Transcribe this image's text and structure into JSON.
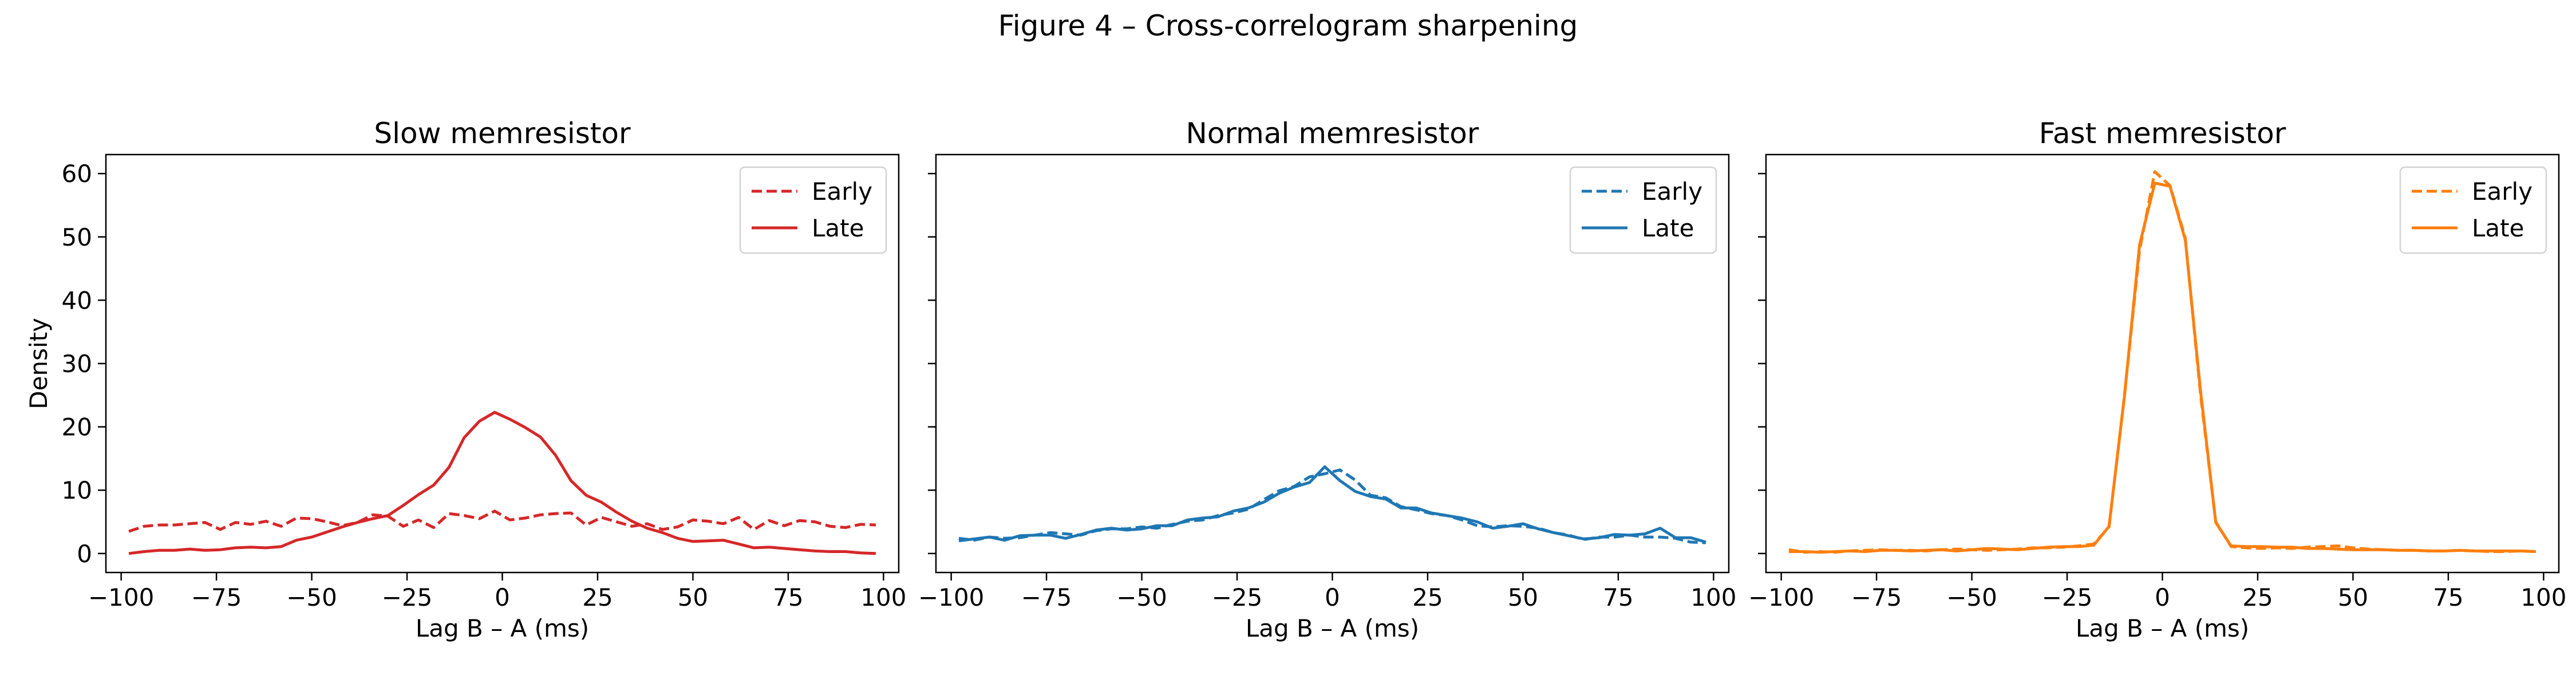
{
  "figure_title": "Figure 4 – Cross-correlogram sharpening",
  "chart_data": [
    {
      "type": "line",
      "title": "Slow memresistor",
      "xlabel": "Lag B – A (ms)",
      "ylabel": "Density",
      "xlim": [
        -104,
        104
      ],
      "ylim": [
        -3,
        63
      ],
      "xticks": [
        -100,
        -75,
        -50,
        -25,
        0,
        25,
        50,
        75,
        100
      ],
      "xtick_labels": [
        "−100",
        "−75",
        "−50",
        "−25",
        "0",
        "25",
        "50",
        "75",
        "100"
      ],
      "yticks": [
        0,
        10,
        20,
        30,
        40,
        50,
        60
      ],
      "ytick_labels": [
        "0",
        "10",
        "20",
        "30",
        "40",
        "50",
        "60"
      ],
      "show_ytick_labels": true,
      "grid": false,
      "legend_position": "upper right",
      "color": "#d62728",
      "series": [
        {
          "name": "Early",
          "style": "dashed",
          "x": [
            -98,
            -94,
            -90,
            -86,
            -82,
            -78,
            -74,
            -70,
            -66,
            -62,
            -58,
            -54,
            -50,
            -46,
            -42,
            -38,
            -34,
            -30,
            -26,
            -22,
            -18,
            -14,
            -10,
            -6,
            -2,
            2,
            6,
            10,
            14,
            18,
            22,
            26,
            30,
            34,
            38,
            42,
            46,
            50,
            54,
            58,
            62,
            66,
            70,
            74,
            78,
            82,
            86,
            90,
            94,
            98
          ],
          "y": [
            3.5,
            4.3,
            4.5,
            4.5,
            4.7,
            4.9,
            3.8,
            4.9,
            4.6,
            5.1,
            4.3,
            5.6,
            5.5,
            5.0,
            4.4,
            4.9,
            6.1,
            5.9,
            4.3,
            5.3,
            4.1,
            6.3,
            6.0,
            5.5,
            6.7,
            5.3,
            5.6,
            6.1,
            6.3,
            6.4,
            4.5,
            5.7,
            5.0,
            4.3,
            4.7,
            3.8,
            4.2,
            5.3,
            5.1,
            4.7,
            5.7,
            3.8,
            5.2,
            4.4,
            5.2,
            5.0,
            4.3,
            4.1,
            4.6,
            4.5
          ]
        },
        {
          "name": "Late",
          "style": "solid",
          "x": [
            -98,
            -94,
            -90,
            -86,
            -82,
            -78,
            -74,
            -70,
            -66,
            -62,
            -58,
            -54,
            -50,
            -46,
            -42,
            -38,
            -34,
            -30,
            -26,
            -22,
            -18,
            -14,
            -10,
            -6,
            -2,
            2,
            6,
            10,
            14,
            18,
            22,
            26,
            30,
            34,
            38,
            42,
            46,
            50,
            54,
            58,
            62,
            66,
            70,
            74,
            78,
            82,
            86,
            90,
            94,
            98
          ],
          "y": [
            0.0,
            0.3,
            0.5,
            0.5,
            0.7,
            0.5,
            0.6,
            0.9,
            1.0,
            0.9,
            1.1,
            2.1,
            2.6,
            3.4,
            4.2,
            4.9,
            5.5,
            6.0,
            7.6,
            9.3,
            10.8,
            13.6,
            18.3,
            20.9,
            22.3,
            21.2,
            19.9,
            18.4,
            15.5,
            11.5,
            9.2,
            8.1,
            6.5,
            5.1,
            4.0,
            3.3,
            2.4,
            1.9,
            2.0,
            2.1,
            1.5,
            0.9,
            1.0,
            0.8,
            0.6,
            0.4,
            0.3,
            0.3,
            0.1,
            0.0
          ]
        }
      ]
    },
    {
      "type": "line",
      "title": "Normal memresistor",
      "xlabel": "Lag B – A (ms)",
      "ylabel": "",
      "xlim": [
        -104,
        104
      ],
      "ylim": [
        -3,
        63
      ],
      "xticks": [
        -100,
        -75,
        -50,
        -25,
        0,
        25,
        50,
        75,
        100
      ],
      "xtick_labels": [
        "−100",
        "−75",
        "−50",
        "−25",
        "0",
        "25",
        "50",
        "75",
        "100"
      ],
      "yticks": [
        0,
        10,
        20,
        30,
        40,
        50,
        60
      ],
      "ytick_labels": [
        "0",
        "10",
        "20",
        "30",
        "40",
        "50",
        "60"
      ],
      "show_ytick_labels": false,
      "grid": false,
      "legend_position": "upper right",
      "color": "#1f77b4",
      "series": [
        {
          "name": "Early",
          "style": "dashed",
          "x": [
            -98,
            -94,
            -90,
            -86,
            -82,
            -78,
            -74,
            -70,
            -66,
            -62,
            -58,
            -54,
            -50,
            -46,
            -42,
            -38,
            -34,
            -30,
            -26,
            -22,
            -18,
            -14,
            -10,
            -6,
            -2,
            2,
            6,
            10,
            14,
            18,
            22,
            26,
            30,
            34,
            38,
            42,
            46,
            50,
            54,
            58,
            62,
            66,
            70,
            74,
            78,
            82,
            86,
            90,
            94,
            98
          ],
          "y": [
            2.4,
            2.1,
            2.6,
            2.4,
            2.5,
            2.9,
            3.3,
            3.1,
            2.9,
            3.6,
            3.9,
            3.9,
            4.2,
            4.0,
            4.6,
            5.1,
            5.3,
            6.0,
            6.4,
            7.0,
            8.5,
            9.9,
            10.6,
            12.1,
            12.6,
            13.2,
            11.6,
            9.2,
            8.8,
            7.4,
            6.9,
            6.3,
            6.0,
            5.3,
            4.4,
            4.2,
            4.4,
            4.3,
            4.0,
            3.3,
            2.9,
            2.2,
            2.6,
            2.6,
            2.9,
            2.6,
            2.6,
            2.4,
            1.8,
            1.7
          ]
        },
        {
          "name": "Late",
          "style": "solid",
          "x": [
            -98,
            -94,
            -90,
            -86,
            -82,
            -78,
            -74,
            -70,
            -66,
            -62,
            -58,
            -54,
            -50,
            -46,
            -42,
            -38,
            -34,
            -30,
            -26,
            -22,
            -18,
            -14,
            -10,
            -6,
            -2,
            2,
            6,
            10,
            14,
            18,
            22,
            26,
            30,
            34,
            38,
            42,
            46,
            50,
            54,
            58,
            62,
            66,
            70,
            74,
            78,
            82,
            86,
            90,
            94,
            98
          ],
          "y": [
            2.0,
            2.3,
            2.6,
            2.1,
            2.8,
            2.9,
            2.9,
            2.4,
            3.0,
            3.7,
            4.0,
            3.7,
            3.9,
            4.4,
            4.4,
            5.3,
            5.6,
            5.8,
            6.7,
            7.2,
            8.1,
            9.5,
            10.5,
            11.2,
            13.7,
            11.5,
            9.8,
            9.0,
            8.6,
            7.2,
            7.2,
            6.4,
            6.0,
            5.6,
            5.0,
            4.0,
            4.3,
            4.7,
            3.9,
            3.3,
            2.8,
            2.3,
            2.5,
            3.0,
            2.9,
            3.1,
            4.0,
            2.5,
            2.5,
            1.8
          ]
        }
      ]
    },
    {
      "type": "line",
      "title": "Fast memresistor",
      "xlabel": "Lag B – A (ms)",
      "ylabel": "",
      "xlim": [
        -104,
        104
      ],
      "ylim": [
        -3,
        63
      ],
      "xticks": [
        -100,
        -75,
        -50,
        -25,
        0,
        25,
        50,
        75,
        100
      ],
      "xtick_labels": [
        "−100",
        "−75",
        "−50",
        "−25",
        "0",
        "25",
        "50",
        "75",
        "100"
      ],
      "yticks": [
        0,
        10,
        20,
        30,
        40,
        50,
        60
      ],
      "ytick_labels": [
        "0",
        "10",
        "20",
        "30",
        "40",
        "50",
        "60"
      ],
      "show_ytick_labels": false,
      "grid": false,
      "legend_position": "upper right",
      "color": "#ff7f0e",
      "series": [
        {
          "name": "Early",
          "style": "dashed",
          "x": [
            -98,
            -94,
            -90,
            -86,
            -82,
            -78,
            -74,
            -70,
            -66,
            -62,
            -58,
            -54,
            -50,
            -46,
            -42,
            -38,
            -34,
            -30,
            -26,
            -22,
            -18,
            -14,
            -10,
            -6,
            -2,
            2,
            6,
            10,
            14,
            18,
            22,
            26,
            30,
            34,
            38,
            42,
            46,
            50,
            54,
            58,
            62,
            66,
            70,
            74,
            78,
            82,
            86,
            90,
            94,
            98
          ],
          "y": [
            0.6,
            0.2,
            0.3,
            0.2,
            0.4,
            0.5,
            0.6,
            0.5,
            0.5,
            0.4,
            0.6,
            0.7,
            0.6,
            0.5,
            0.6,
            0.7,
            0.9,
            0.9,
            1.0,
            1.2,
            1.5,
            4.2,
            24.7,
            47.8,
            60.3,
            58.1,
            49.8,
            25.1,
            5.0,
            1.1,
            0.9,
            0.8,
            0.9,
            0.8,
            1.0,
            1.1,
            1.2,
            0.9,
            0.7,
            0.6,
            0.5,
            0.5,
            0.4,
            0.4,
            0.5,
            0.4,
            0.3,
            0.3,
            0.4,
            0.3
          ]
        },
        {
          "name": "Late",
          "style": "solid",
          "x": [
            -98,
            -94,
            -90,
            -86,
            -82,
            -78,
            -74,
            -70,
            -66,
            -62,
            -58,
            -54,
            -50,
            -46,
            -42,
            -38,
            -34,
            -30,
            -26,
            -22,
            -18,
            -14,
            -10,
            -6,
            -2,
            2,
            6,
            10,
            14,
            18,
            22,
            26,
            30,
            34,
            38,
            42,
            46,
            50,
            54,
            58,
            62,
            66,
            70,
            74,
            78,
            82,
            86,
            90,
            94,
            98
          ],
          "y": [
            0.3,
            0.3,
            0.2,
            0.3,
            0.4,
            0.3,
            0.5,
            0.5,
            0.4,
            0.5,
            0.6,
            0.4,
            0.6,
            0.8,
            0.7,
            0.6,
            0.8,
            1.0,
            1.1,
            1.1,
            1.3,
            4.3,
            24.6,
            48.7,
            58.5,
            58.0,
            49.5,
            25.7,
            4.9,
            1.2,
            1.1,
            1.1,
            1.0,
            1.0,
            0.8,
            0.8,
            0.7,
            0.6,
            0.6,
            0.6,
            0.5,
            0.5,
            0.4,
            0.4,
            0.5,
            0.4,
            0.4,
            0.4,
            0.4,
            0.3
          ]
        }
      ]
    }
  ]
}
